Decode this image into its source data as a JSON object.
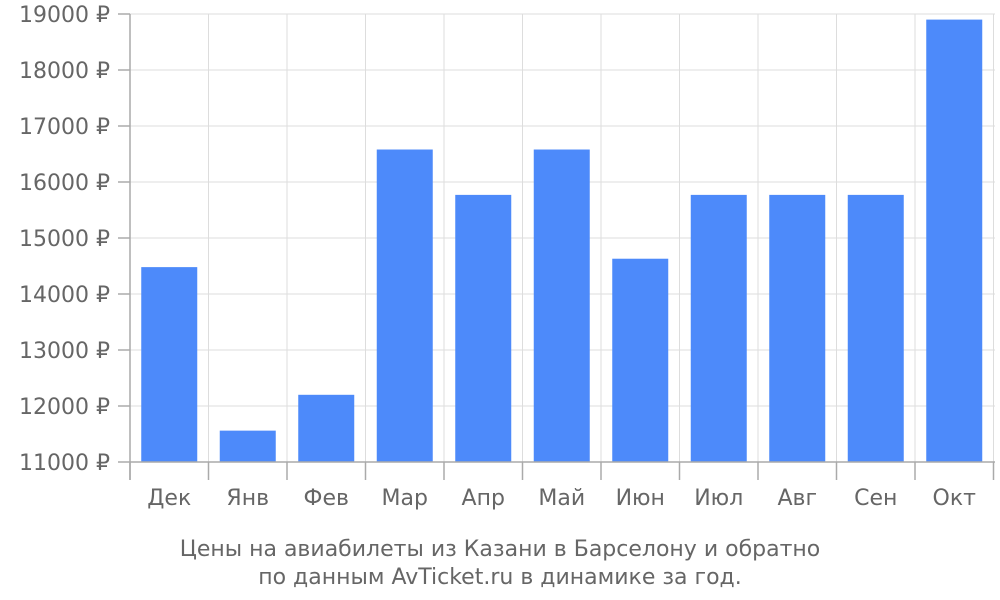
{
  "chart_data": {
    "type": "bar",
    "categories": [
      "Дек",
      "Янв",
      "Фев",
      "Мар",
      "Апр",
      "Май",
      "Июн",
      "Июл",
      "Авг",
      "Сен",
      "Окт"
    ],
    "values": [
      14480,
      11560,
      12200,
      16580,
      15770,
      16580,
      14630,
      15770,
      15770,
      15770,
      18900
    ],
    "ylim": [
      11000,
      19000
    ],
    "yticks": [
      11000,
      12000,
      13000,
      14000,
      15000,
      16000,
      17000,
      18000,
      19000
    ],
    "ytick_labels": [
      "11000 ₽",
      "12000 ₽",
      "13000 ₽",
      "14000 ₽",
      "15000 ₽",
      "16000 ₽",
      "17000 ₽",
      "18000 ₽",
      "19000 ₽"
    ],
    "grid": true,
    "bar_color": "#4d8afa",
    "caption": [
      "Цены на авиабилеты из Казани в Барселону и обратно",
      "по данным AvTicket.ru в динамике за год."
    ]
  }
}
